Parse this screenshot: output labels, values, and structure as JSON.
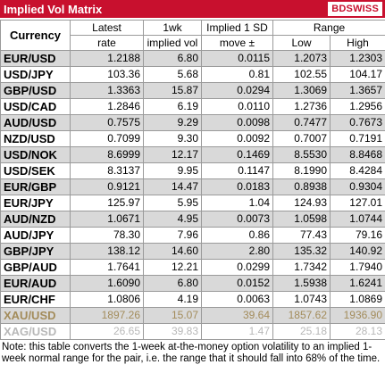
{
  "header": {
    "title": "Implied Vol Matrix",
    "logo": "BDSWISS"
  },
  "table": {
    "columns": {
      "currency": "Currency",
      "latest": [
        "Latest",
        "rate"
      ],
      "vol": [
        "1wk",
        "implied vol"
      ],
      "move": [
        "Implied 1 SD",
        "move ±"
      ],
      "range": "Range",
      "low": "Low",
      "high": "High"
    },
    "rows": [
      {
        "cells": [
          "EUR/USD",
          "1.2188",
          "6.80",
          "0.0115",
          "1.2073",
          "1.2303"
        ]
      },
      {
        "cells": [
          "USD/JPY",
          "103.36",
          "5.68",
          "0.81",
          "102.55",
          "104.17"
        ]
      },
      {
        "cells": [
          "GBP/USD",
          "1.3363",
          "15.87",
          "0.0294",
          "1.3069",
          "1.3657"
        ]
      },
      {
        "cells": [
          "USD/CAD",
          "1.2846",
          "6.19",
          "0.0110",
          "1.2736",
          "1.2956"
        ]
      },
      {
        "cells": [
          "AUD/USD",
          "0.7575",
          "9.29",
          "0.0098",
          "0.7477",
          "0.7673"
        ]
      },
      {
        "cells": [
          "NZD/USD",
          "0.7099",
          "9.30",
          "0.0092",
          "0.7007",
          "0.7191"
        ]
      },
      {
        "cells": [
          "USD/NOK",
          "8.6999",
          "12.17",
          "0.1469",
          "8.5530",
          "8.8468"
        ]
      },
      {
        "cells": [
          "USD/SEK",
          "8.3137",
          "9.95",
          "0.1147",
          "8.1990",
          "8.4284"
        ]
      },
      {
        "cells": [
          "EUR/GBP",
          "0.9121",
          "14.47",
          "0.0183",
          "0.8938",
          "0.9304"
        ]
      },
      {
        "cells": [
          "EUR/JPY",
          "125.97",
          "5.95",
          "1.04",
          "124.93",
          "127.01"
        ]
      },
      {
        "cells": [
          "AUD/NZD",
          "1.0671",
          "4.95",
          "0.0073",
          "1.0598",
          "1.0744"
        ]
      },
      {
        "cells": [
          "AUD/JPY",
          "78.30",
          "7.96",
          "0.86",
          "77.43",
          "79.16"
        ]
      },
      {
        "cells": [
          "GBP/JPY",
          "138.12",
          "14.60",
          "2.80",
          "135.32",
          "140.92"
        ]
      },
      {
        "cells": [
          "GBP/AUD",
          "1.7641",
          "12.21",
          "0.0299",
          "1.7342",
          "1.7940"
        ]
      },
      {
        "cells": [
          "EUR/AUD",
          "1.6090",
          "6.80",
          "0.0152",
          "1.5938",
          "1.6241"
        ]
      },
      {
        "cells": [
          "EUR/CHF",
          "1.0806",
          "4.19",
          "0.0063",
          "1.0743",
          "1.0869"
        ]
      },
      {
        "cells": [
          "XAU/USD",
          "1897.26",
          "15.07",
          "39.64",
          "1857.62",
          "1936.90"
        ],
        "color": "#a38c5b"
      },
      {
        "cells": [
          "XAG/USD",
          "26.65",
          "39.83",
          "1.47",
          "25.18",
          "28.13"
        ],
        "color": "#b8b8b8"
      }
    ]
  },
  "note": "Note: this table converts the 1-week at-the-money option volatility to an implied 1-week normal range for the pair, i.e. the range that it should fall into 68% of the time."
}
